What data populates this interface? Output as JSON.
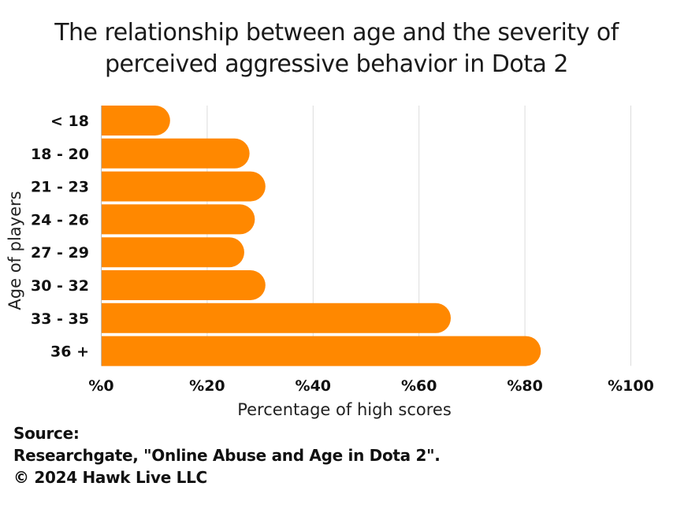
{
  "chart_data": {
    "type": "bar",
    "orientation": "horizontal",
    "title": "The relationship between age and the severity of perceived aggressive behavior in Dota 2",
    "title_lines": [
      "The relationship between age and the severity of",
      "perceived aggressive behavior in Dota 2"
    ],
    "categories": [
      "< 18",
      "18 - 20",
      "21 - 23",
      "24 - 26",
      "27 - 29",
      "30 - 32",
      "33 - 35",
      "36 +"
    ],
    "values": [
      13,
      28,
      31,
      29,
      27,
      31,
      66,
      83
    ],
    "xlabel": "Percentage of high scores",
    "ylabel": "Age of players",
    "xlim": [
      0,
      100
    ],
    "xticks": [
      0,
      20,
      40,
      60,
      80,
      100
    ],
    "xtick_labels": [
      "%0",
      "%20",
      "%40",
      "%60",
      "%80",
      "%100"
    ],
    "grid": "vertical",
    "bar_color": "#FF8800",
    "legend": "none"
  },
  "footer": {
    "source_label": "Source:",
    "source_text": "Researchgate, \"Online Abuse and Age in Dota 2\".",
    "copyright": "© 2024 Hawk Live LLC"
  }
}
